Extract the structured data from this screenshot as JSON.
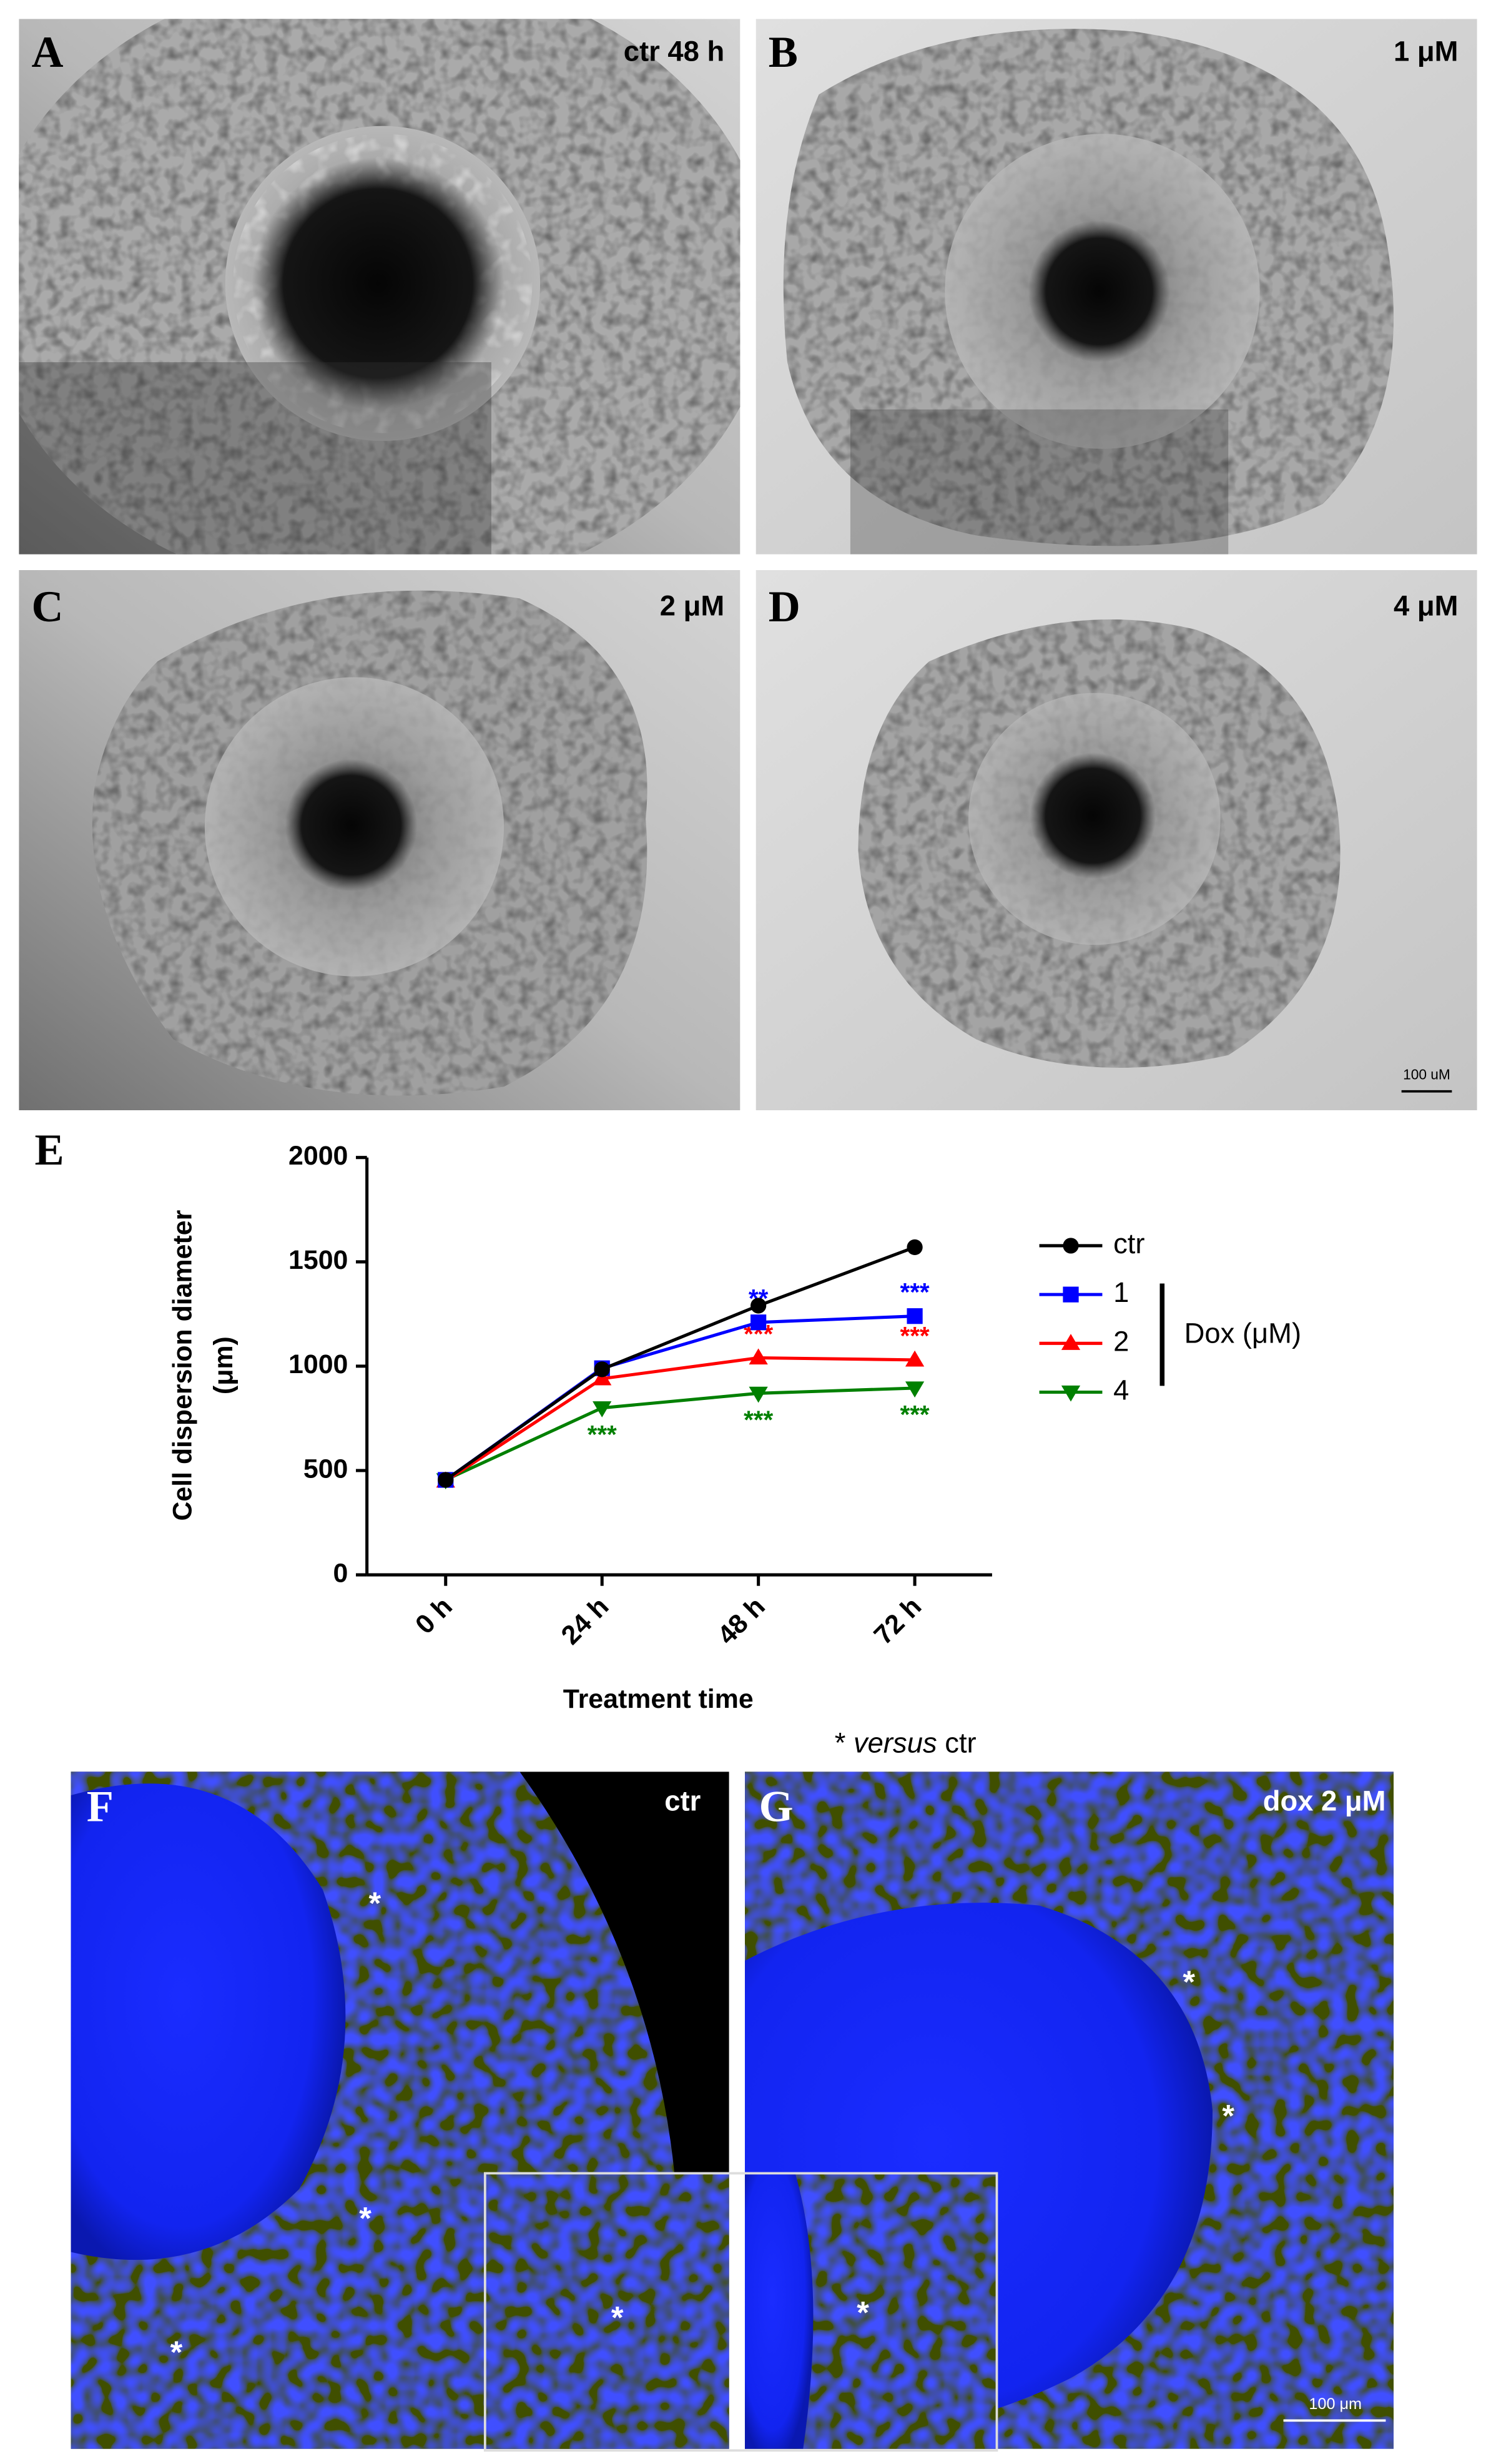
{
  "panels": {
    "A": {
      "label": "A",
      "caption": "ctr 48 h"
    },
    "B": {
      "label": "B",
      "caption": "1 μM"
    },
    "C": {
      "label": "C",
      "caption": "2 μM"
    },
    "D": {
      "label": "D",
      "caption": "4 μM",
      "scale_bar": "100 uM"
    },
    "F": {
      "label": "F",
      "caption": "ctr",
      "markers": [
        "*",
        "*",
        "*",
        "*"
      ]
    },
    "G": {
      "label": "G",
      "caption": "dox 2 μM",
      "markers": [
        "*",
        "*",
        "*"
      ],
      "scale_bar": "100 μm"
    }
  },
  "chart_data": {
    "type": "line",
    "label": "E",
    "xlabel": "Treatment time",
    "ylabel": [
      "Cell dispersion diameter",
      "(μm)"
    ],
    "categories": [
      "0 h",
      "24 h",
      "48 h",
      "72 h"
    ],
    "ylim": [
      0,
      2000
    ],
    "yticks": [
      0,
      500,
      1000,
      1500,
      2000
    ],
    "series": [
      {
        "name": "ctr",
        "color": "#000000",
        "marker": "circle",
        "values": [
          455,
          985,
          1290,
          1570
        ],
        "significance": [
          null,
          null,
          null,
          null
        ]
      },
      {
        "name": "1",
        "color": "#0000ff",
        "marker": "square",
        "values": [
          455,
          990,
          1210,
          1240
        ],
        "significance": [
          null,
          null,
          "**",
          "***"
        ]
      },
      {
        "name": "2",
        "color": "#ff0000",
        "marker": "triangle-up",
        "values": [
          450,
          940,
          1040,
          1030
        ],
        "significance": [
          null,
          null,
          "***",
          "***"
        ]
      },
      {
        "name": "4",
        "color": "#008000",
        "marker": "triangle-down",
        "values": [
          455,
          800,
          870,
          895
        ],
        "significance": [
          null,
          "***",
          "***",
          "***"
        ]
      }
    ],
    "legend_group": "Dox (μM)",
    "note": [
      "* ",
      "versus",
      " ctr"
    ]
  }
}
